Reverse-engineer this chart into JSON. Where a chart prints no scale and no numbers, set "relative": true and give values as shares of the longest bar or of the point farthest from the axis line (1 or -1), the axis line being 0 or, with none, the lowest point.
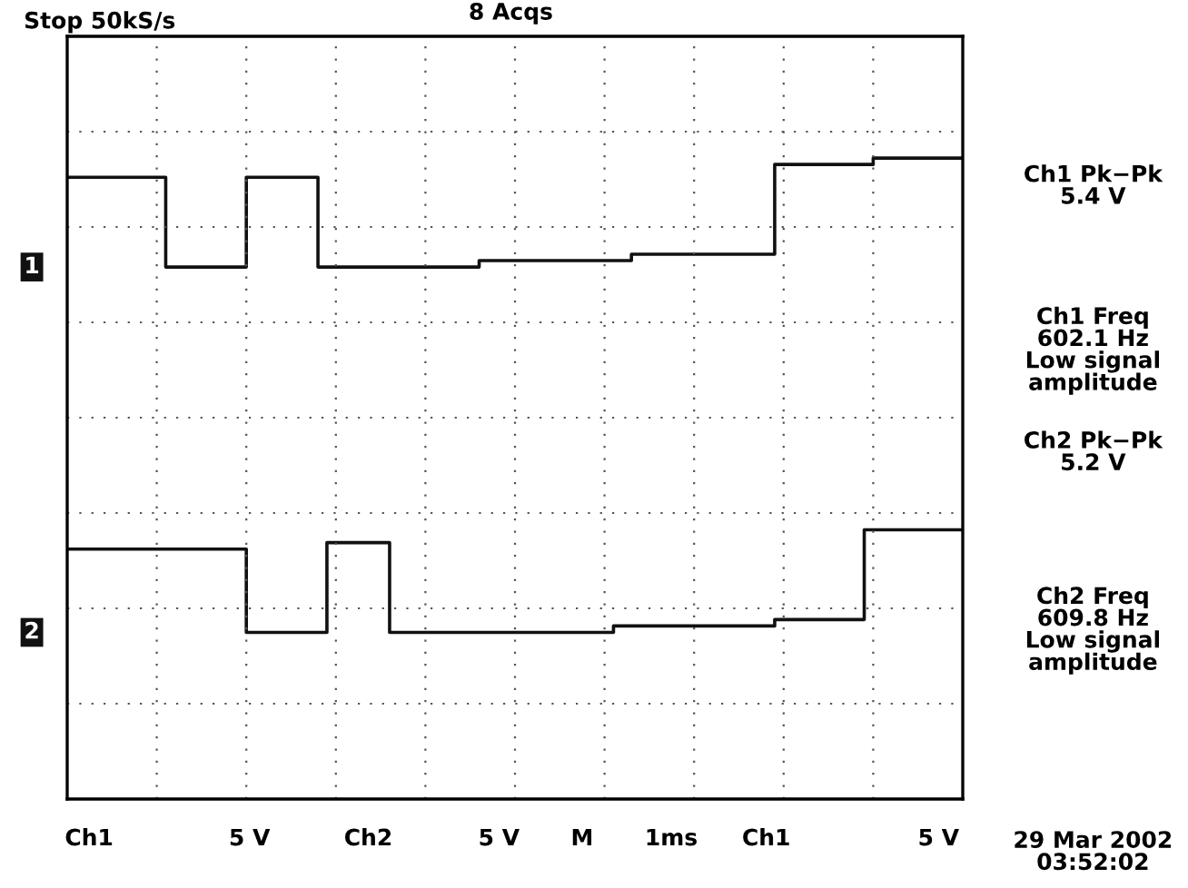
{
  "chart_data": {
    "type": "step",
    "relative": true,
    "grid": true,
    "line_style": "solid",
    "marker": "none",
    "categories": [
      null,
      null,
      null,
      null,
      null,
      null,
      null,
      null,
      null,
      null,
      null,
      null,
      null,
      null,
      null,
      null,
      null,
      null,
      null,
      null,
      null,
      null,
      null,
      null,
      null,
      null,
      null,
      null,
      null,
      null,
      null,
      null,
      null,
      null,
      null,
      null,
      null,
      null,
      null,
      null,
      null,
      null,
      null,
      null,
      null,
      null,
      null,
      null,
      null,
      null,
      null,
      null,
      null,
      null,
      null,
      null,
      null,
      null,
      null,
      null,
      null,
      null,
      null,
      null,
      null,
      null,
      null,
      null,
      null,
      null,
      null,
      null,
      null,
      null,
      null,
      null,
      null,
      null,
      null,
      null,
      null,
      null,
      null,
      null,
      null,
      null,
      null,
      null,
      null,
      null,
      null,
      null,
      null,
      null,
      null,
      null,
      null,
      null,
      null,
      null,
      null
    ],
    "series": [
      {
        "name": "1",
        "color": "#111111",
        "values": [
          0.97,
          0.97,
          0.97,
          0.97,
          0.97,
          0.97,
          0.97,
          0.97,
          0.97,
          0.97,
          0.97,
          0.83,
          0.83,
          0.83,
          0.83,
          0.83,
          0.83,
          0.83,
          0.83,
          0.83,
          0.97,
          0.97,
          0.97,
          0.97,
          0.97,
          0.97,
          0.97,
          0.97,
          0.83,
          0.83,
          0.83,
          0.83,
          0.83,
          0.83,
          0.83,
          0.83,
          0.83,
          0.83,
          0.83,
          0.83,
          0.83,
          0.83,
          0.83,
          0.83,
          0.83,
          0.83,
          0.84,
          0.84,
          0.84,
          0.84,
          0.84,
          0.84,
          0.84,
          0.84,
          0.84,
          0.84,
          0.84,
          0.84,
          0.84,
          0.84,
          0.84,
          0.84,
          0.84,
          0.85,
          0.85,
          0.85,
          0.85,
          0.85,
          0.85,
          0.85,
          0.85,
          0.85,
          0.85,
          0.85,
          0.85,
          0.85,
          0.85,
          0.85,
          0.85,
          0.99,
          0.99,
          0.99,
          0.99,
          0.99,
          0.99,
          0.99,
          0.99,
          0.99,
          0.99,
          0.99,
          1.0,
          1.0,
          1.0,
          1.0,
          1.0,
          1.0,
          1.0,
          1.0,
          1.0,
          1.0,
          1.0
        ]
      },
      {
        "name": "2",
        "color": "#111111",
        "values": [
          0.39,
          0.39,
          0.39,
          0.39,
          0.39,
          0.39,
          0.39,
          0.39,
          0.39,
          0.39,
          0.39,
          0.39,
          0.39,
          0.39,
          0.39,
          0.39,
          0.39,
          0.39,
          0.39,
          0.39,
          0.26,
          0.26,
          0.26,
          0.26,
          0.26,
          0.26,
          0.26,
          0.26,
          0.26,
          0.4,
          0.4,
          0.4,
          0.4,
          0.4,
          0.4,
          0.4,
          0.26,
          0.26,
          0.26,
          0.26,
          0.26,
          0.26,
          0.26,
          0.26,
          0.26,
          0.26,
          0.26,
          0.26,
          0.26,
          0.26,
          0.26,
          0.26,
          0.26,
          0.26,
          0.26,
          0.26,
          0.26,
          0.26,
          0.26,
          0.26,
          0.26,
          0.27,
          0.27,
          0.27,
          0.27,
          0.27,
          0.27,
          0.27,
          0.27,
          0.27,
          0.27,
          0.27,
          0.27,
          0.27,
          0.27,
          0.27,
          0.27,
          0.27,
          0.27,
          0.28,
          0.28,
          0.28,
          0.28,
          0.28,
          0.28,
          0.28,
          0.28,
          0.28,
          0.28,
          0.42,
          0.42,
          0.42,
          0.42,
          0.42,
          0.42,
          0.42,
          0.42,
          0.42,
          0.42,
          0.42,
          0.42
        ]
      }
    ],
    "annotations": [
      "Stop 50kS/s",
      "8 Acqs",
      "Ch1 Pk−Pk\n5.4 V",
      "Ch1 Freq\n602.1 Hz\nLow signal\namplitude",
      "Ch2 Pk−Pk\n5.2 V",
      "Ch2 Freq\n609.8 Hz\nLow signal\namplitude",
      "Ch1",
      "5 V",
      "Ch2",
      "5 V",
      "M",
      "1ms",
      "Ch1",
      "5 V",
      "29 Mar 2002\n03:52:02"
    ]
  }
}
